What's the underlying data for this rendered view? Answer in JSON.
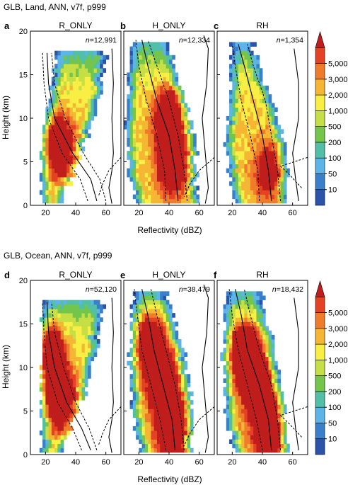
{
  "figure": {
    "rows": [
      {
        "title": "GLB, Land, ANN, v7f, p999"
      },
      {
        "title": "GLB, Ocean, ANN, v7f, p999"
      }
    ],
    "ylabel": "Height (km)",
    "xlabel": "Reflectivity (dBZ)"
  },
  "chart_data": [
    {
      "type": "heatmap",
      "panel": "a",
      "title": "R_ONLY",
      "n_label": "n",
      "n_value": "=12,991",
      "xlim": [
        10,
        70
      ],
      "ylim": [
        0,
        20
      ],
      "xticks": [
        "20",
        "40",
        "60"
      ],
      "yticks": [
        "0",
        "5",
        "10",
        "15",
        "20"
      ],
      "top_height_km": 17.5,
      "x_start": [
        17,
        17,
        18,
        20,
        24,
        27
      ],
      "x_end": [
        30,
        38,
        46,
        54,
        58,
        60
      ],
      "peak": [
        [
          44,
          2.5
        ],
        [
          28,
          7
        ]
      ],
      "peak_level": 0.75,
      "median": [
        [
          54,
          0.5
        ],
        [
          50,
          3
        ],
        [
          38,
          6
        ],
        [
          26,
          10
        ],
        [
          22,
          14
        ],
        [
          21,
          17.5
        ]
      ],
      "q25": [
        [
          48,
          0.5
        ],
        [
          43,
          3
        ],
        [
          31,
          6
        ],
        [
          22,
          10
        ],
        [
          19,
          14
        ],
        [
          18,
          17.5
        ]
      ],
      "q75": [
        [
          60,
          0.5
        ],
        [
          56,
          3
        ],
        [
          45,
          6
        ],
        [
          33,
          10
        ],
        [
          26,
          14
        ],
        [
          24,
          17.5
        ]
      ],
      "profile": [
        [
          64,
          0.2
        ],
        [
          62,
          2
        ],
        [
          64,
          4
        ],
        [
          65,
          6
        ],
        [
          64,
          10
        ],
        [
          65,
          14
        ],
        [
          64,
          18
        ]
      ],
      "profile_dashed": [
        [
          70,
          5.5
        ],
        [
          62,
          4
        ],
        [
          58,
          2.5
        ],
        [
          55,
          1
        ]
      ]
    },
    {
      "type": "heatmap",
      "panel": "b",
      "title": "H_ONLY",
      "n_label": "n",
      "n_value": "=12,334",
      "xlim": [
        10,
        70
      ],
      "ylim": [
        0,
        20
      ],
      "xticks": [
        "20",
        "40",
        "60"
      ],
      "yticks": [
        "0",
        "5",
        "10",
        "15",
        "20"
      ],
      "top_height_km": 18.5,
      "x_start": [
        20,
        13,
        12,
        12,
        13,
        14
      ],
      "x_end": [
        60,
        58,
        58,
        52,
        46,
        40
      ],
      "peak": [
        [
          42,
          5
        ],
        [
          40,
          10
        ]
      ],
      "peak_level": 0.85,
      "median": [
        [
          46,
          0.5
        ],
        [
          44,
          4
        ],
        [
          40,
          8
        ],
        [
          32,
          12
        ],
        [
          26,
          16
        ],
        [
          22,
          19
        ]
      ],
      "q25": [
        [
          38,
          0.5
        ],
        [
          37,
          4
        ],
        [
          32,
          8
        ],
        [
          25,
          12
        ],
        [
          20,
          16
        ],
        [
          18,
          19
        ]
      ],
      "q75": [
        [
          52,
          0.5
        ],
        [
          50,
          4
        ],
        [
          46,
          8
        ],
        [
          40,
          12
        ],
        [
          32,
          16
        ],
        [
          26,
          19
        ]
      ],
      "profile": [
        [
          64,
          0.2
        ],
        [
          66,
          2
        ],
        [
          64,
          6
        ],
        [
          62,
          10
        ],
        [
          65,
          14
        ],
        [
          66,
          18
        ],
        [
          63,
          19.5
        ]
      ],
      "profile_dashed": [
        [
          70,
          5.5
        ],
        [
          60,
          4
        ],
        [
          54,
          2.5
        ],
        [
          50,
          1
        ]
      ]
    },
    {
      "type": "heatmap",
      "panel": "c",
      "title": "RH",
      "n_label": "n",
      "n_value": "=1,354",
      "xlim": [
        10,
        70
      ],
      "ylim": [
        0,
        20
      ],
      "xticks": [
        "20",
        "40",
        "60"
      ],
      "yticks": [
        "0",
        "5",
        "10",
        "15",
        "20"
      ],
      "top_height_km": 18.5,
      "x_start": [
        22,
        18,
        16,
        17,
        18,
        20
      ],
      "x_end": [
        56,
        56,
        54,
        48,
        40,
        34
      ],
      "peak": [
        [
          44,
          4
        ]
      ],
      "peak_level": 0.45,
      "median": [
        [
          46,
          0.5
        ],
        [
          44,
          4
        ],
        [
          40,
          8
        ],
        [
          34,
          12
        ],
        [
          28,
          16
        ],
        [
          24,
          18.5
        ]
      ],
      "q25": [
        [
          38,
          0.5
        ],
        [
          37,
          4
        ],
        [
          32,
          8
        ],
        [
          26,
          12
        ],
        [
          22,
          16
        ],
        [
          20,
          18.5
        ]
      ],
      "q75": [
        [
          52,
          0.5
        ],
        [
          50,
          4
        ],
        [
          46,
          8
        ],
        [
          42,
          12
        ],
        [
          34,
          16
        ],
        [
          30,
          18.5
        ]
      ],
      "profile": [
        [
          64,
          0.5
        ],
        [
          62,
          3
        ],
        [
          60,
          6
        ],
        [
          64,
          10
        ],
        [
          64,
          14
        ],
        [
          61,
          18
        ]
      ],
      "profile_dashed": [
        [
          66,
          2
        ],
        [
          58,
          3.5
        ],
        [
          52,
          4.5
        ],
        [
          70,
          5.5
        ]
      ]
    },
    {
      "type": "heatmap",
      "panel": "d",
      "title": "R_ONLY",
      "n_label": "n",
      "n_value": "=52,120",
      "xlim": [
        10,
        70
      ],
      "ylim": [
        0,
        20
      ],
      "xticks": [
        "20",
        "40",
        "60"
      ],
      "yticks": [
        "0",
        "5",
        "10",
        "15",
        "20"
      ],
      "top_height_km": 17.5,
      "x_start": [
        18,
        17,
        17,
        18,
        18,
        18
      ],
      "x_end": [
        30,
        38,
        46,
        52,
        56,
        58
      ],
      "peak": [
        [
          44,
          2.5
        ],
        [
          28,
          7
        ],
        [
          22,
          12
        ]
      ],
      "peak_level": 0.95,
      "median": [
        [
          50,
          0.5
        ],
        [
          44,
          3
        ],
        [
          34,
          6
        ],
        [
          26,
          10
        ],
        [
          22,
          14
        ],
        [
          21,
          17.5
        ]
      ],
      "q25": [
        [
          44,
          0.5
        ],
        [
          38,
          3
        ],
        [
          28,
          6
        ],
        [
          21,
          10
        ],
        [
          19,
          14
        ],
        [
          18,
          17.5
        ]
      ],
      "q75": [
        [
          54,
          0.5
        ],
        [
          49,
          3
        ],
        [
          40,
          6
        ],
        [
          32,
          10
        ],
        [
          26,
          14
        ],
        [
          24,
          17.5
        ]
      ],
      "profile": [
        [
          64,
          0.2
        ],
        [
          62,
          2
        ],
        [
          64,
          4
        ],
        [
          65,
          6
        ],
        [
          64,
          10
        ],
        [
          65,
          14
        ],
        [
          64,
          18
        ]
      ],
      "profile_dashed": [
        [
          70,
          5.5
        ],
        [
          62,
          4
        ],
        [
          58,
          2.5
        ],
        [
          55,
          1
        ]
      ]
    },
    {
      "type": "heatmap",
      "panel": "e",
      "title": "H_ONLY",
      "n_label": "n",
      "n_value": "=38,479",
      "xlim": [
        10,
        70
      ],
      "ylim": [
        0,
        20
      ],
      "xticks": [
        "20",
        "40",
        "60"
      ],
      "yticks": [
        "0",
        "5",
        "10",
        "15",
        "20"
      ],
      "top_height_km": 18.5,
      "x_start": [
        22,
        17,
        15,
        14,
        14,
        16
      ],
      "x_end": [
        56,
        56,
        54,
        50,
        44,
        38
      ],
      "peak": [
        [
          42,
          3
        ],
        [
          36,
          8
        ],
        [
          28,
          13
        ]
      ],
      "peak_level": 0.95,
      "median": [
        [
          44,
          0.5
        ],
        [
          42,
          4
        ],
        [
          36,
          8
        ],
        [
          30,
          12
        ],
        [
          26,
          16
        ],
        [
          22,
          19
        ]
      ],
      "q25": [
        [
          38,
          0.5
        ],
        [
          34,
          4
        ],
        [
          28,
          8
        ],
        [
          22,
          12
        ],
        [
          19,
          16
        ],
        [
          17,
          19
        ]
      ],
      "q75": [
        [
          50,
          0.5
        ],
        [
          48,
          4
        ],
        [
          44,
          8
        ],
        [
          38,
          12
        ],
        [
          32,
          16
        ],
        [
          28,
          19
        ]
      ],
      "profile": [
        [
          64,
          0.2
        ],
        [
          66,
          2
        ],
        [
          64,
          6
        ],
        [
          62,
          10
        ],
        [
          65,
          14
        ],
        [
          66,
          18
        ],
        [
          63,
          19.5
        ]
      ],
      "profile_dashed": [
        [
          70,
          5.5
        ],
        [
          60,
          4
        ],
        [
          54,
          2.5
        ],
        [
          50,
          1
        ]
      ]
    },
    {
      "type": "heatmap",
      "panel": "f",
      "title": "RH",
      "n_label": "n",
      "n_value": "=18,432",
      "xlim": [
        10,
        70
      ],
      "ylim": [
        0,
        20
      ],
      "xticks": [
        "20",
        "40",
        "60"
      ],
      "yticks": [
        "0",
        "5",
        "10",
        "15",
        "20"
      ],
      "top_height_km": 18.5,
      "x_start": [
        22,
        17,
        15,
        14,
        15,
        16
      ],
      "x_end": [
        58,
        56,
        54,
        50,
        44,
        40
      ],
      "peak": [
        [
          44,
          3
        ],
        [
          36,
          8
        ],
        [
          28,
          12
        ]
      ],
      "peak_level": 0.9,
      "median": [
        [
          46,
          0.5
        ],
        [
          44,
          4
        ],
        [
          38,
          8
        ],
        [
          30,
          12
        ],
        [
          26,
          16
        ],
        [
          22,
          19
        ]
      ],
      "q25": [
        [
          40,
          0.5
        ],
        [
          36,
          4
        ],
        [
          30,
          8
        ],
        [
          24,
          12
        ],
        [
          20,
          16
        ],
        [
          18,
          19
        ]
      ],
      "q75": [
        [
          52,
          0.5
        ],
        [
          50,
          4
        ],
        [
          46,
          8
        ],
        [
          38,
          12
        ],
        [
          32,
          16
        ],
        [
          28,
          19
        ]
      ],
      "profile": [
        [
          64,
          0.5
        ],
        [
          62,
          3
        ],
        [
          60,
          6
        ],
        [
          64,
          10
        ],
        [
          64,
          14
        ],
        [
          61,
          18
        ]
      ],
      "profile_dashed": [
        [
          66,
          2
        ],
        [
          58,
          3.5
        ],
        [
          52,
          4.5
        ],
        [
          70,
          5.5
        ]
      ]
    }
  ],
  "colorbar": {
    "levels": [
      "10",
      "50",
      "100",
      "200",
      "500",
      "1,000",
      "2,000",
      "3,000",
      "5,000"
    ],
    "colors": [
      "#2b53a7",
      "#3a7fc9",
      "#5cb4e8",
      "#52c0a6",
      "#74c54c",
      "#c5df45",
      "#f9ee43",
      "#f5b733",
      "#ef7c2a",
      "#e54224",
      "#c01d1d"
    ]
  }
}
